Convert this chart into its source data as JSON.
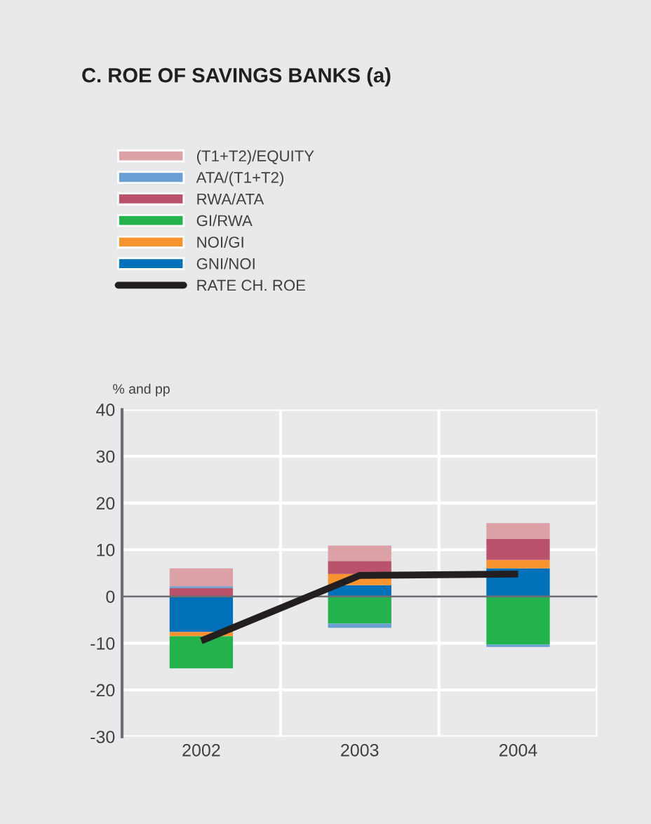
{
  "chart_data": {
    "type": "bar",
    "title": "C. ROE OF SAVINGS BANKS (a)",
    "ylabel": "% and pp",
    "categories": [
      "2002",
      "2003",
      "2004"
    ],
    "stacked": true,
    "series": [
      {
        "name": "GNI/NOI",
        "color": "#0070b8",
        "values": [
          -7.6,
          2.4,
          6.0
        ]
      },
      {
        "name": "NOI/GI",
        "color": "#f7942f",
        "values": [
          -0.9,
          2.4,
          1.8
        ]
      },
      {
        "name": "GI/RWA",
        "color": "#23b24b",
        "values": [
          -6.9,
          -5.8,
          -10.3
        ]
      },
      {
        "name": "RWA/ATA",
        "color": "#bb526c",
        "values": [
          1.8,
          2.8,
          4.5
        ]
      },
      {
        "name": "ATA/(T1+T2)",
        "color": "#6a9fd3",
        "values": [
          0.4,
          -0.9,
          -0.5
        ]
      },
      {
        "name": "(T1+T2)/EQUITY",
        "color": "#dba1a7",
        "values": [
          3.8,
          3.3,
          3.4
        ]
      },
      {
        "name": "RATE CH. ROE",
        "type": "line",
        "color": "#231f20",
        "values": [
          -9.5,
          4.5,
          4.8
        ]
      }
    ],
    "ylim": [
      -30,
      40
    ],
    "yticks": [
      -30,
      -20,
      -10,
      0,
      10,
      20,
      30,
      40
    ],
    "ref_lines": [
      {
        "axis": "y",
        "value": 0,
        "color": "#6d6e71"
      }
    ],
    "grid": true,
    "legend": "top"
  }
}
